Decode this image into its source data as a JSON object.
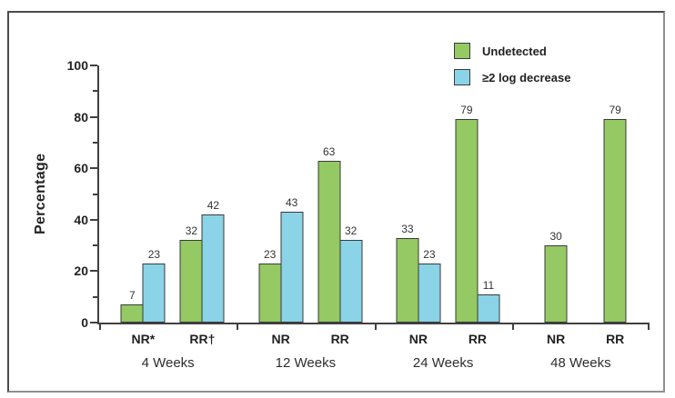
{
  "chart_data": {
    "type": "bar",
    "title": "",
    "xlabel": "",
    "ylabel": "Percentage",
    "ylim": [
      0,
      100
    ],
    "ytick_major": [
      0,
      20,
      40,
      60,
      80,
      100
    ],
    "ytick_minor": [
      10,
      30,
      50,
      70,
      90
    ],
    "grid": false,
    "legend_position": "top-right",
    "series": [
      {
        "name": "Undetected",
        "color": "#94C963"
      },
      {
        "name": "≥2 log decrease",
        "color": "#8BD3E6"
      }
    ],
    "groups": [
      {
        "label": "4 Weeks",
        "clusters": [
          {
            "label": "NR*",
            "values": [
              7,
              23
            ]
          },
          {
            "label": "RR†",
            "values": [
              32,
              42
            ]
          }
        ]
      },
      {
        "label": "12 Weeks",
        "clusters": [
          {
            "label": "NR",
            "values": [
              23,
              43
            ]
          },
          {
            "label": "RR",
            "values": [
              63,
              32
            ]
          }
        ]
      },
      {
        "label": "24 Weeks",
        "clusters": [
          {
            "label": "NR",
            "values": [
              33,
              23
            ]
          },
          {
            "label": "RR",
            "values": [
              79,
              11
            ]
          }
        ]
      },
      {
        "label": "48 Weeks",
        "clusters": [
          {
            "label": "NR",
            "values": [
              30,
              null
            ]
          },
          {
            "label": "RR",
            "values": [
              79,
              null
            ]
          }
        ]
      }
    ]
  }
}
